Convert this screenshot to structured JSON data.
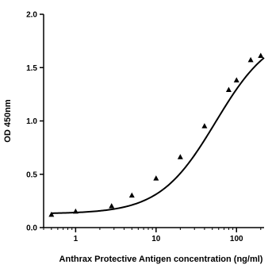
{
  "chart_data": {
    "type": "scatter",
    "title": "",
    "xlabel": "Anthrax Protective Antigen concentration (ng/ml)",
    "ylabel": "OD 450nm",
    "x_scale": "log",
    "xlim": [
      0.4,
      220
    ],
    "ylim": [
      0,
      2.0
    ],
    "yticks": [
      0.0,
      0.5,
      1.0,
      1.5,
      2.0
    ],
    "ytick_labels": [
      "0.0",
      "0.5",
      "1.0",
      "1.5",
      "2.0"
    ],
    "xticks": [
      1,
      10,
      100
    ],
    "xtick_labels": [
      "1",
      "10",
      "100"
    ],
    "grid": false,
    "legend": "none",
    "marker": "triangle",
    "colors": {
      "points": "#000000",
      "curve": "#000000",
      "axes": "#000000"
    },
    "series": [
      {
        "x": [
          0.5,
          1.0,
          2.8,
          5.0,
          10,
          20,
          40,
          80,
          100,
          150,
          200
        ],
        "y": [
          0.12,
          0.15,
          0.2,
          0.3,
          0.46,
          0.66,
          0.95,
          1.29,
          1.38,
          1.57,
          1.61
        ]
      }
    ],
    "fit_curve": {
      "model": "4PL",
      "bottom": 0.13,
      "top": 1.85,
      "ec50": 55,
      "hill": 1.25
    }
  }
}
